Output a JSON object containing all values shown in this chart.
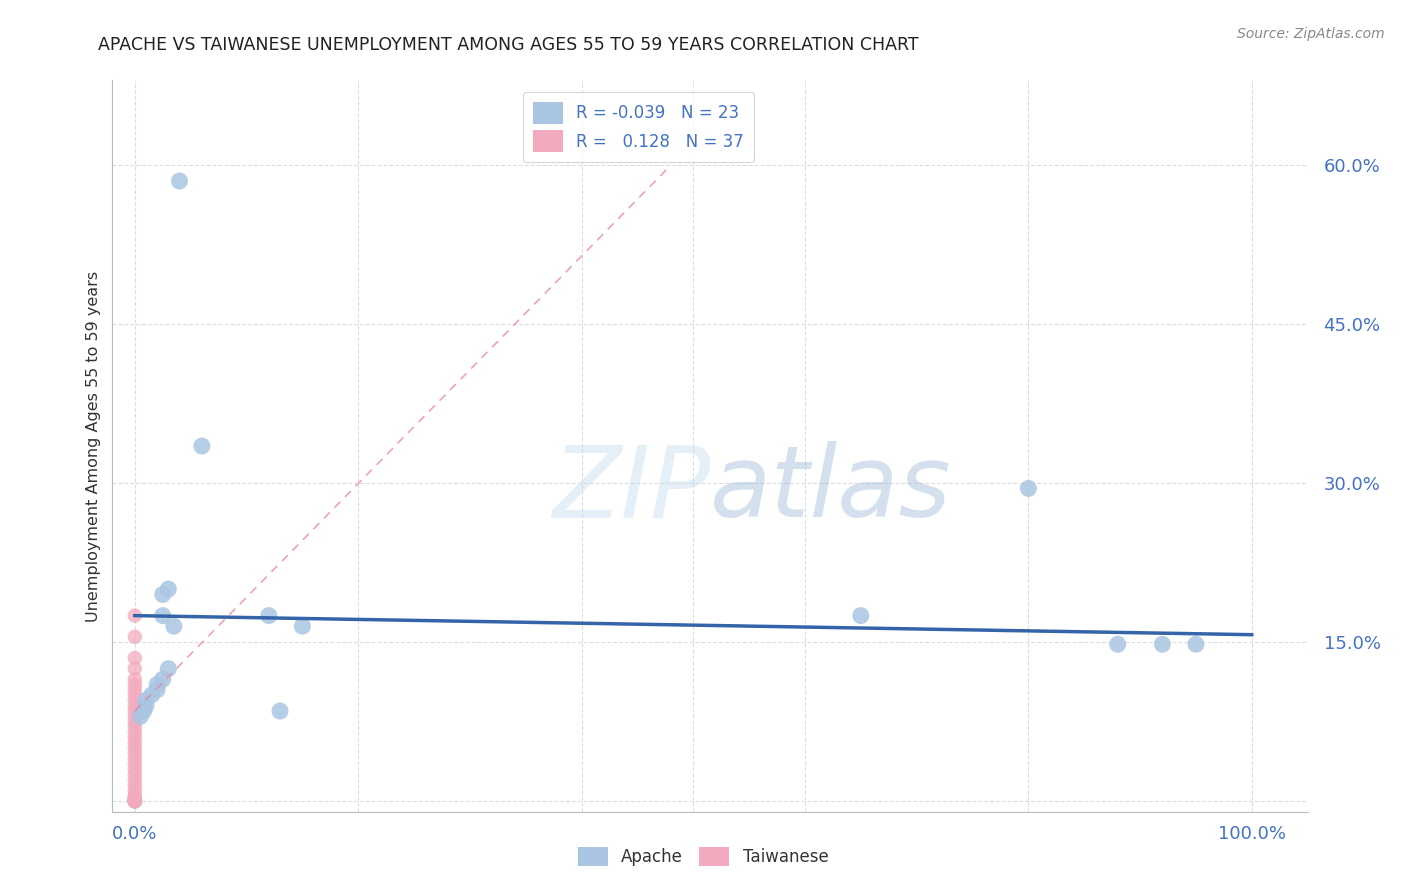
{
  "title": "APACHE VS TAIWANESE UNEMPLOYMENT AMONG AGES 55 TO 59 YEARS CORRELATION CHART",
  "source": "Source: ZipAtlas.com",
  "ylabel": "Unemployment Among Ages 55 to 59 years",
  "ytick_labels": [
    "",
    "15.0%",
    "30.0%",
    "45.0%",
    "60.0%"
  ],
  "ytick_values": [
    0.0,
    0.15,
    0.3,
    0.45,
    0.6
  ],
  "xtick_labels": [
    "0.0%",
    "100.0%"
  ],
  "xtick_values": [
    0.0,
    1.0
  ],
  "xlim": [
    -0.02,
    1.05
  ],
  "ylim": [
    -0.01,
    0.68
  ],
  "apache_R": "-0.039",
  "apache_N": "23",
  "taiwanese_R": "0.128",
  "taiwanese_N": "37",
  "apache_color": "#aac5e2",
  "taiwanese_color": "#f2aabe",
  "apache_line_color": "#3565a8",
  "taiwanese_line_color": "#e8849a",
  "apache_scatter": [
    [
      0.04,
      0.585
    ],
    [
      0.06,
      0.335
    ],
    [
      0.03,
      0.2
    ],
    [
      0.025,
      0.195
    ],
    [
      0.025,
      0.175
    ],
    [
      0.035,
      0.165
    ],
    [
      0.03,
      0.125
    ],
    [
      0.025,
      0.115
    ],
    [
      0.02,
      0.11
    ],
    [
      0.02,
      0.105
    ],
    [
      0.015,
      0.1
    ],
    [
      0.01,
      0.095
    ],
    [
      0.01,
      0.09
    ],
    [
      0.008,
      0.085
    ],
    [
      0.005,
      0.08
    ],
    [
      0.12,
      0.175
    ],
    [
      0.13,
      0.085
    ],
    [
      0.15,
      0.165
    ],
    [
      0.65,
      0.175
    ],
    [
      0.8,
      0.295
    ],
    [
      0.88,
      0.148
    ],
    [
      0.92,
      0.148
    ],
    [
      0.95,
      0.148
    ]
  ],
  "taiwanese_scatter": [
    [
      0.0,
      0.175
    ],
    [
      0.0,
      0.155
    ],
    [
      0.0,
      0.135
    ],
    [
      0.0,
      0.125
    ],
    [
      0.0,
      0.115
    ],
    [
      0.0,
      0.11
    ],
    [
      0.0,
      0.105
    ],
    [
      0.0,
      0.1
    ],
    [
      0.0,
      0.095
    ],
    [
      0.0,
      0.09
    ],
    [
      0.0,
      0.085
    ],
    [
      0.0,
      0.08
    ],
    [
      0.0,
      0.075
    ],
    [
      0.0,
      0.07
    ],
    [
      0.0,
      0.065
    ],
    [
      0.0,
      0.06
    ],
    [
      0.0,
      0.055
    ],
    [
      0.0,
      0.05
    ],
    [
      0.0,
      0.045
    ],
    [
      0.0,
      0.04
    ],
    [
      0.0,
      0.035
    ],
    [
      0.0,
      0.03
    ],
    [
      0.0,
      0.025
    ],
    [
      0.0,
      0.02
    ],
    [
      0.0,
      0.015
    ],
    [
      0.0,
      0.01
    ],
    [
      0.0,
      0.005
    ],
    [
      0.0,
      0.003
    ],
    [
      0.0,
      0.002
    ],
    [
      0.0,
      0.001
    ],
    [
      0.0,
      0.0
    ],
    [
      0.0,
      0.0
    ],
    [
      0.0,
      0.0
    ],
    [
      0.0,
      0.0
    ],
    [
      0.0,
      0.0
    ],
    [
      0.0,
      0.0
    ],
    [
      0.0,
      0.0
    ]
  ],
  "apache_trendline": [
    0.0,
    1.0
  ],
  "apache_trend_y_start": 0.175,
  "apache_trend_slope": -0.018,
  "taiwanese_trendline_x": [
    0.0,
    0.48
  ],
  "taiwanese_trendline_y": [
    0.085,
    0.6
  ],
  "watermark_zip": "ZIP",
  "watermark_atlas": "atlas",
  "background_color": "#ffffff",
  "grid_color": "#dddddd",
  "title_color": "#222222",
  "tick_color": "#4472c4"
}
